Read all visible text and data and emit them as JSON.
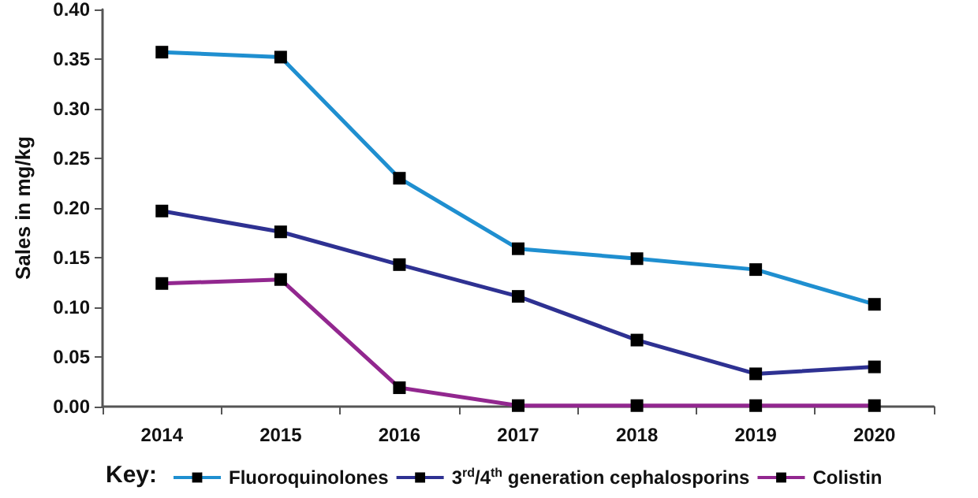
{
  "chart_data": {
    "type": "line",
    "ylabel": "Sales in mg/kg",
    "legend_title": "Key:",
    "categories": [
      "2014",
      "2015",
      "2016",
      "2017",
      "2018",
      "2019",
      "2020"
    ],
    "series": [
      {
        "name": "Fluoroquinolones",
        "color": "#1f8fd0",
        "values": [
          0.357,
          0.352,
          0.23,
          0.159,
          0.149,
          0.138,
          0.103
        ]
      },
      {
        "name": "3$^{rd}$/4$^{th}$ generation cephalosporins",
        "color": "#2e3192",
        "values": [
          0.197,
          0.176,
          0.143,
          0.111,
          0.067,
          0.033,
          0.04
        ]
      },
      {
        "name": "Colistin",
        "color": "#92278f",
        "values": [
          0.124,
          0.128,
          0.019,
          0.001,
          0.001,
          0.001,
          0.001
        ]
      }
    ],
    "ylim": [
      0,
      0.4
    ],
    "yticks": [
      {
        "value": 0,
        "label": "0.00"
      },
      {
        "value": 0.05,
        "label": "0.05"
      },
      {
        "value": 0.1,
        "label": "0.10"
      },
      {
        "value": 0.15,
        "label": "0.15"
      },
      {
        "value": 0.2,
        "label": "0.20"
      },
      {
        "value": 0.25,
        "label": "0.25"
      },
      {
        "value": 0.3,
        "label": "0.30"
      },
      {
        "value": 0.35,
        "label": "0.35"
      },
      {
        "value": 0.4,
        "label": "0.40"
      }
    ],
    "grid": false,
    "legend": "bottom",
    "marker": "square",
    "line_style": "solid"
  }
}
